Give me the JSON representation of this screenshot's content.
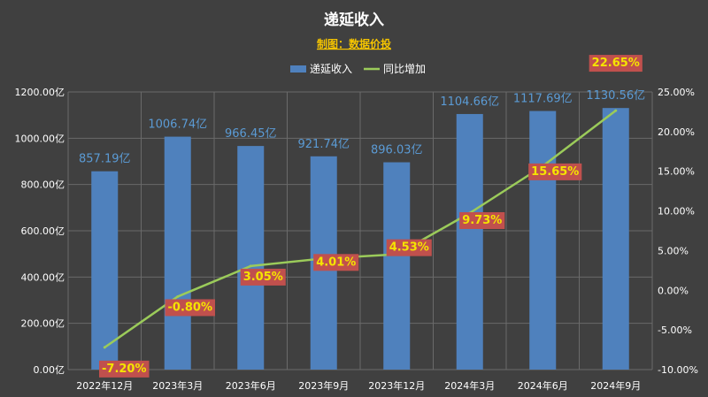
{
  "chart_data": {
    "type": "bar",
    "title": "递延收入",
    "subtitle": "制图：数据价投",
    "categories": [
      "2022年12月",
      "2023年3月",
      "2023年6月",
      "2023年9月",
      "2023年12月",
      "2024年3月",
      "2024年6月",
      "2024年9月"
    ],
    "series": [
      {
        "name": "递延收入",
        "type": "bar",
        "axis": "left",
        "color": "#4f81bd",
        "values": [
          857.19,
          1006.74,
          966.45,
          921.74,
          896.03,
          1104.66,
          1117.69,
          1130.56
        ],
        "labels": [
          "857.19亿",
          "1006.74亿",
          "966.45亿",
          "921.74亿",
          "896.03亿",
          "1104.66亿",
          "1117.69亿",
          "1130.56亿"
        ]
      },
      {
        "name": "同比增加",
        "type": "line",
        "axis": "right",
        "color": "#9bcb5a",
        "values": [
          -7.2,
          -0.8,
          3.05,
          4.01,
          4.53,
          9.73,
          15.65,
          22.65
        ],
        "labels": [
          "-7.20%",
          "-0.80%",
          "3.05%",
          "4.01%",
          "4.53%",
          "9.73%",
          "15.65%",
          "22.65%"
        ]
      }
    ],
    "y_left": {
      "range": [
        0,
        1200
      ],
      "ticks": [
        0,
        200,
        400,
        600,
        800,
        1000,
        1200
      ],
      "tick_labels": [
        "0.00亿",
        "200.00亿",
        "400.00亿",
        "600.00亿",
        "800.00亿",
        "1000.00亿",
        "1200.00亿"
      ]
    },
    "y_right": {
      "range": [
        -10,
        25
      ],
      "ticks": [
        -10,
        -5,
        0,
        5,
        10,
        15,
        20,
        25
      ],
      "tick_labels": [
        "-10.00%",
        "-5.00%",
        "0.00%",
        "5.00%",
        "10.00%",
        "15.00%",
        "20.00%",
        "25.00%"
      ]
    },
    "legend_position": "top",
    "grid": true,
    "label_box_color": "#c0504d"
  }
}
